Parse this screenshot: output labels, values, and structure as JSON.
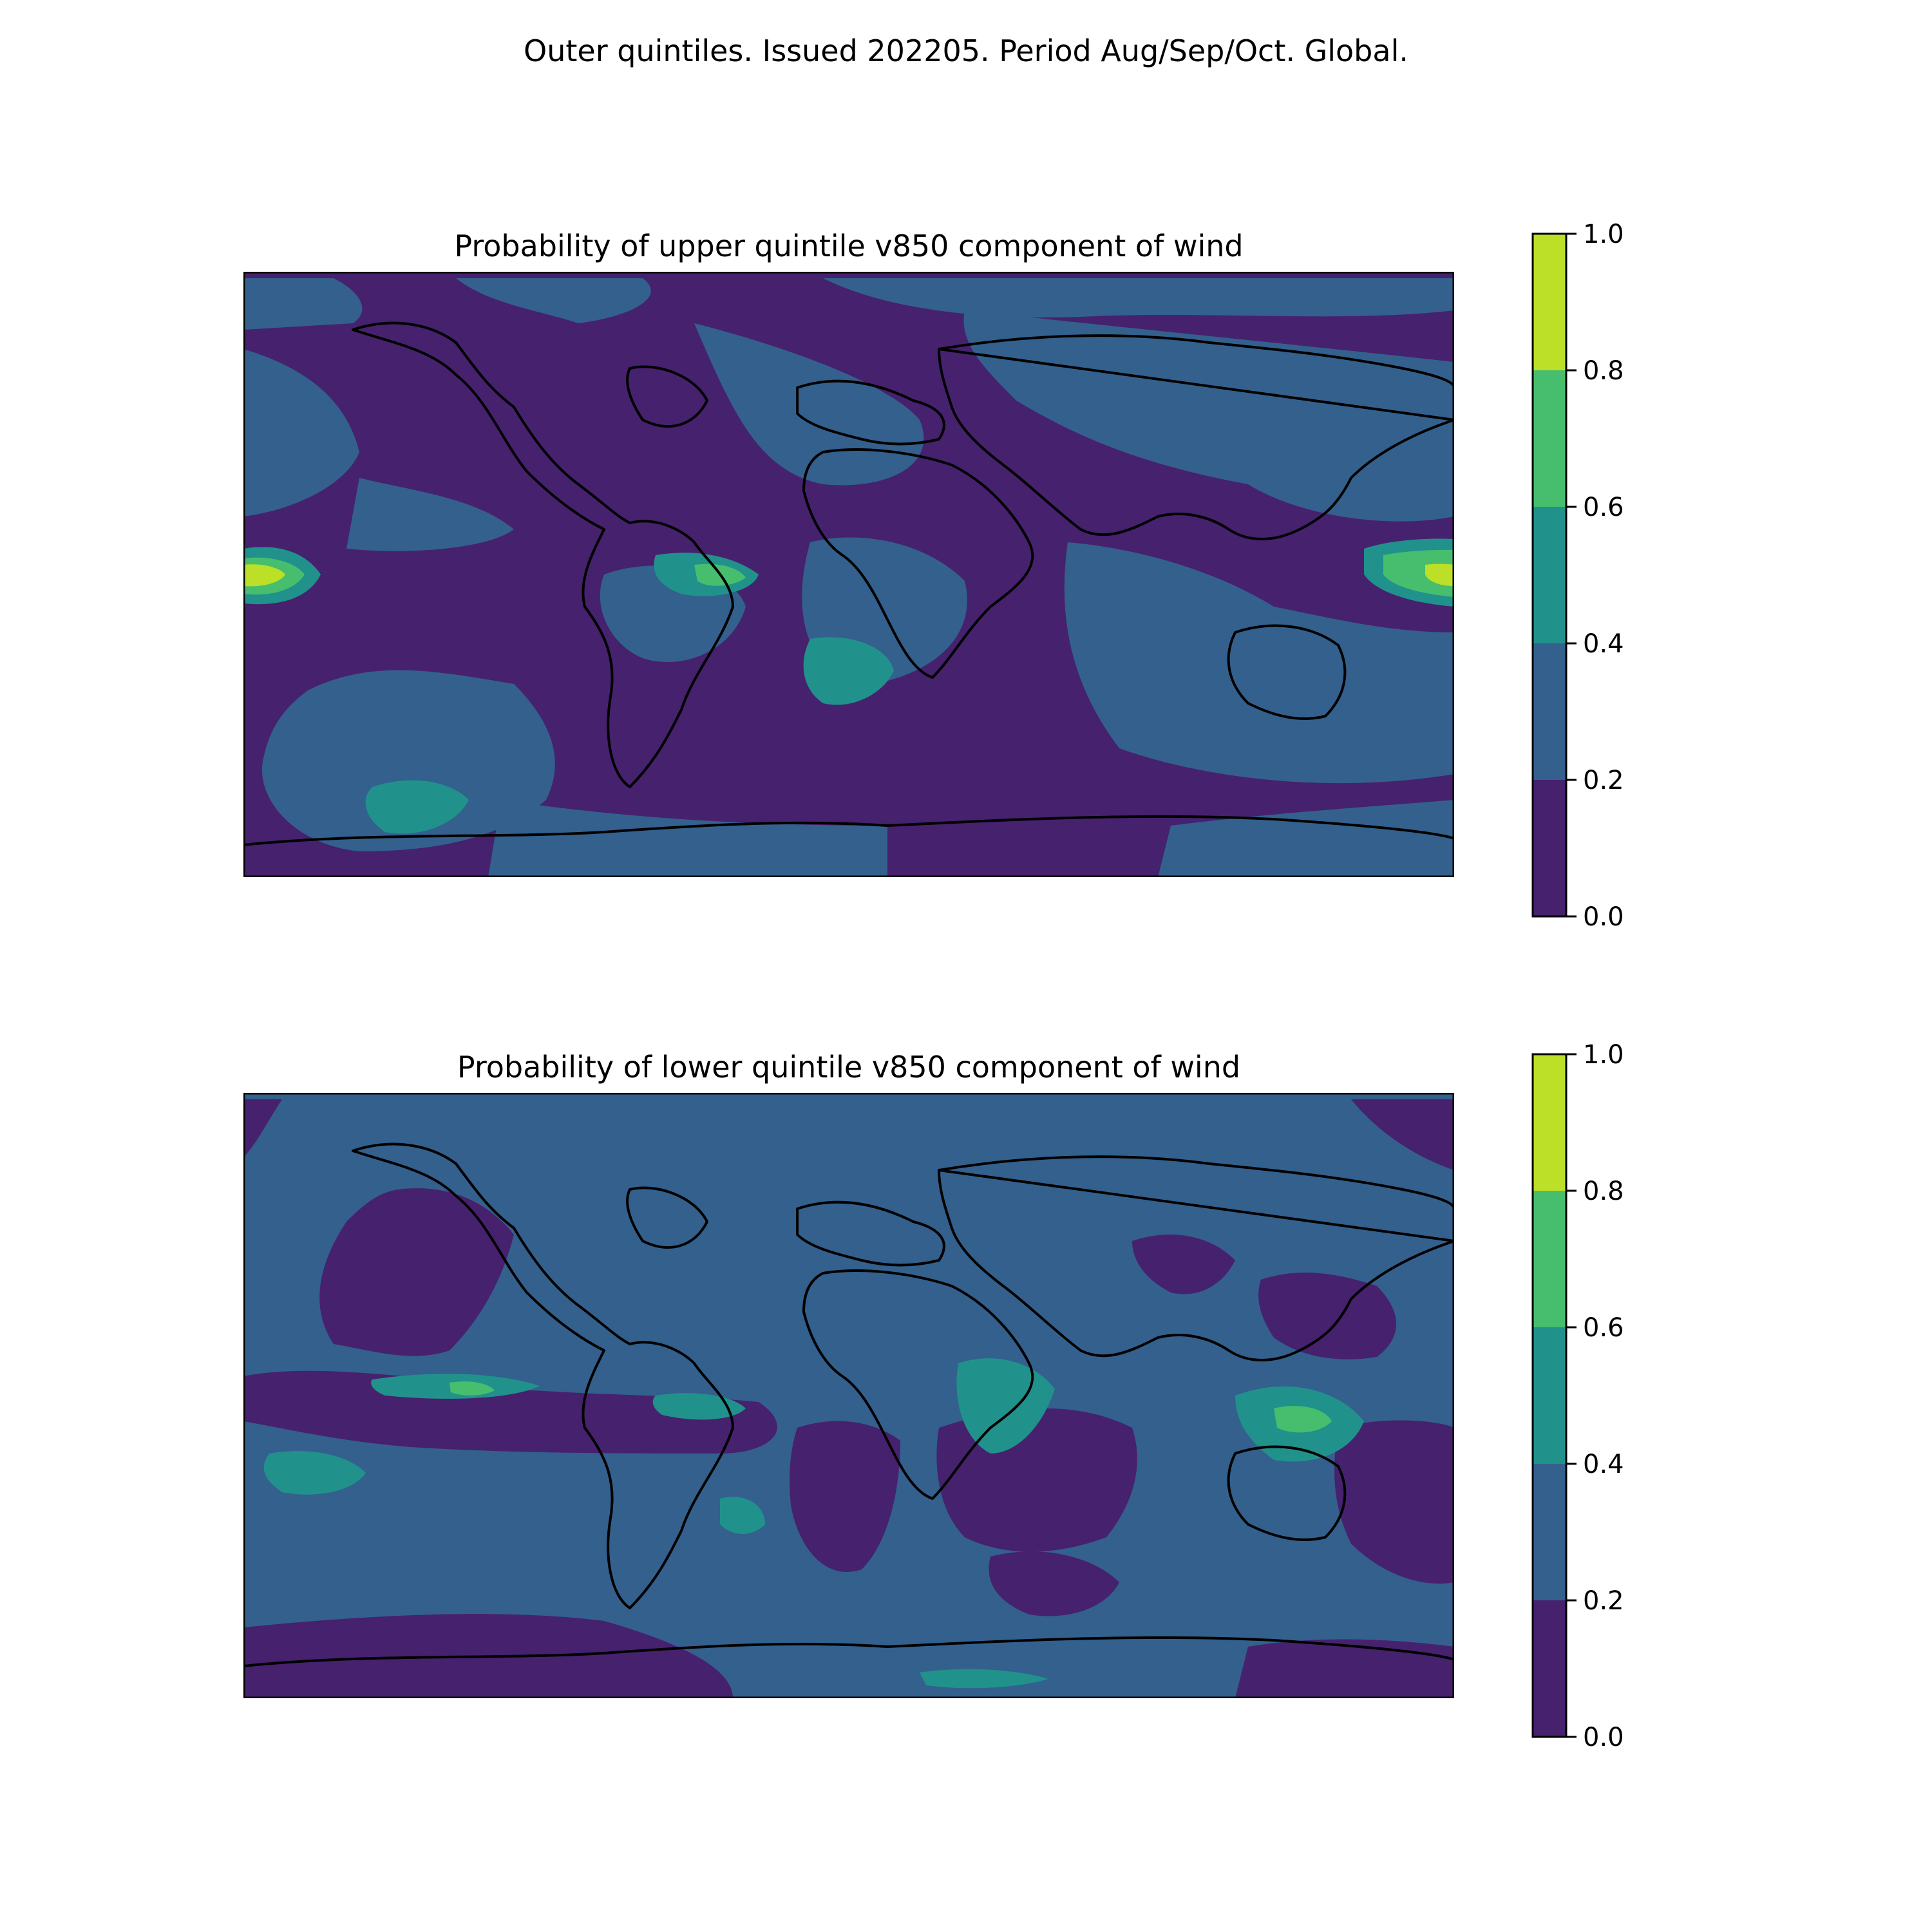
{
  "figure": {
    "suptitle": "Outer quintiles. Issued 202205. Period Aug/Sep/Oct. Global."
  },
  "colorbar": {
    "ticks": [
      "0.0",
      "0.2",
      "0.4",
      "0.6",
      "0.8",
      "1.0"
    ],
    "levels": [
      0.0,
      0.2,
      0.4,
      0.6,
      0.8,
      1.0
    ],
    "colors": [
      "#46216e",
      "#33608d",
      "#21918c",
      "#47be6e",
      "#bcdf27"
    ]
  },
  "chart_data": [
    {
      "type": "heatmap",
      "title": "Probability of upper quintile v850 component of wind",
      "projection": "Plate Carree, global",
      "lon_range": [
        -180,
        180
      ],
      "lat_range": [
        -90,
        90
      ],
      "value_range": [
        0.0,
        1.0
      ],
      "background_class": "0.0-0.2",
      "notable_regions": [
        {
          "region": "Equatorial central Pacific (near date line)",
          "class": "0.8-1.0"
        },
        {
          "region": "Equatorial western Pacific east of New Guinea",
          "class": "0.6-0.8"
        },
        {
          "region": "Tropical Atlantic / northeast Brazil coast",
          "class": "0.4-0.8"
        },
        {
          "region": "South Atlantic off southwest Africa",
          "class": "0.4-0.6"
        },
        {
          "region": "Southern Pacific near 60S",
          "class": "0.4-0.6"
        },
        {
          "region": "Northern mid-latitudes and Indian Ocean",
          "class": "0.2-0.4"
        }
      ]
    },
    {
      "type": "heatmap",
      "title": "Probability of lower quintile v850 component of wind",
      "projection": "Plate Carree, global",
      "lon_range": [
        -180,
        180
      ],
      "lat_range": [
        -90,
        90
      ],
      "value_range": [
        0.0,
        1.0
      ],
      "background_class": "0.2-0.4",
      "notable_regions": [
        {
          "region": "Maritime Continent / New Guinea",
          "class": "0.4-0.8"
        },
        {
          "region": "East Africa",
          "class": "0.4-0.6"
        },
        {
          "region": "Central equatorial Pacific band",
          "class": "0.4-0.8"
        },
        {
          "region": "Near-equatorial Atlantic",
          "class": "0.4-0.6"
        },
        {
          "region": "Eastern Pacific, southern hemisphere",
          "class": "0.0-0.2"
        },
        {
          "region": "Southern Ocean south of Africa and Australia",
          "class": "0.0-0.2"
        }
      ]
    }
  ]
}
